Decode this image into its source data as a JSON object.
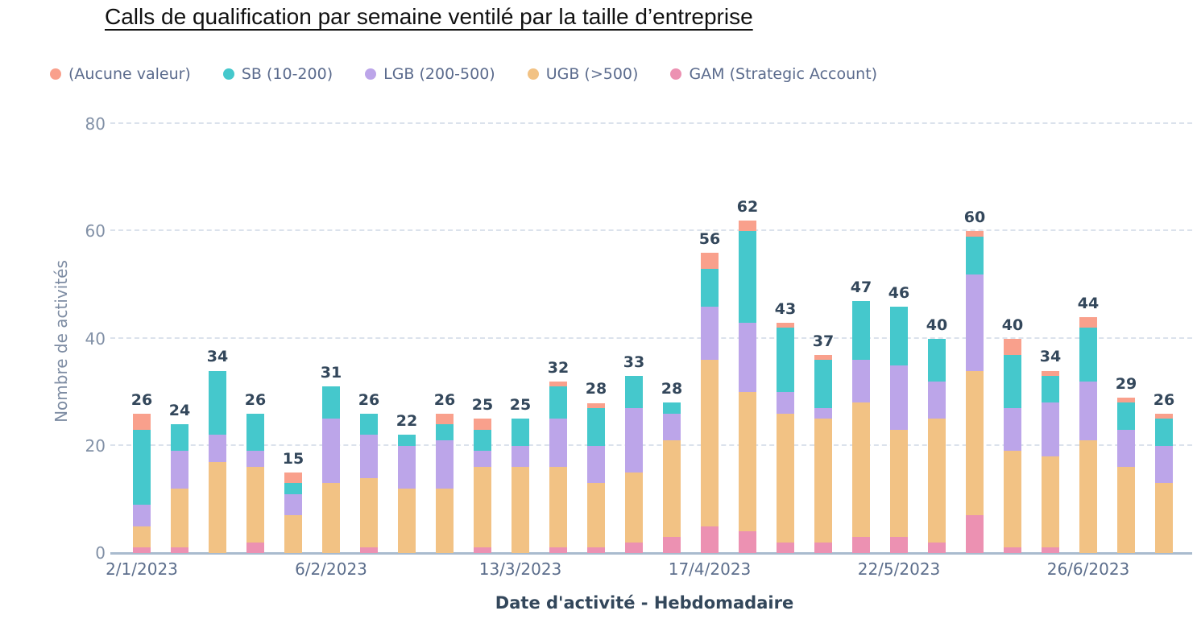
{
  "title": "Calls de qualification par semaine ventilé par la taille d’entreprise",
  "legend": [
    {
      "label": "(Aucune valeur)",
      "color": "#F9A08C"
    },
    {
      "label": "SB (10-200)",
      "color": "#45C8CC"
    },
    {
      "label": "LGB (200-500)",
      "color": "#BCA5E9"
    },
    {
      "label": "UGB (>500)",
      "color": "#F2C284"
    },
    {
      "label": "GAM (Strategic Account)",
      "color": "#EC91B2"
    }
  ],
  "y_axis": {
    "label": "Nombre de activités",
    "ticks": [
      0,
      20,
      40,
      60,
      80
    ],
    "max": 80
  },
  "x_axis": {
    "label": "Date d'activité - Hebdomadaire",
    "ticks": [
      {
        "label": "2/1/2023",
        "bar_index": 0
      },
      {
        "label": "6/2/2023",
        "bar_index": 5
      },
      {
        "label": "13/3/2023",
        "bar_index": 10
      },
      {
        "label": "17/4/2023",
        "bar_index": 15
      },
      {
        "label": "22/5/2023",
        "bar_index": 20
      },
      {
        "label": "26/6/2023",
        "bar_index": 25
      }
    ]
  },
  "chart_data": {
    "type": "bar",
    "stacked": true,
    "bar_count": 28,
    "title": "Calls de qualification par semaine ventilé par la taille d’entreprise",
    "xlabel": "Date d'activité - Hebdomadaire",
    "ylabel": "Nombre de activités",
    "ylim": [
      0,
      80
    ],
    "grid": "horizontal-dashed",
    "legend_position": "top",
    "stack_order_bottom_to_top": [
      "GAM (Strategic Account)",
      "UGB (>500)",
      "LGB (200-500)",
      "SB (10-200)",
      "(Aucune valeur)"
    ],
    "totals": [
      26,
      24,
      34,
      26,
      15,
      31,
      26,
      22,
      26,
      25,
      25,
      32,
      28,
      33,
      28,
      56,
      62,
      43,
      37,
      47,
      46,
      40,
      60,
      40,
      34,
      44,
      29,
      26
    ],
    "series": [
      {
        "name": "(Aucune valeur)",
        "color": "#F9A08C",
        "values": [
          3,
          0,
          0,
          0,
          2,
          0,
          0,
          0,
          2,
          2,
          0,
          1,
          1,
          0,
          0,
          3,
          2,
          1,
          1,
          0,
          0,
          0,
          1,
          3,
          1,
          2,
          1,
          1
        ]
      },
      {
        "name": "SB (10-200)",
        "color": "#45C8CC",
        "values": [
          14,
          5,
          12,
          7,
          2,
          6,
          4,
          2,
          3,
          4,
          5,
          6,
          7,
          6,
          2,
          7,
          17,
          12,
          9,
          11,
          11,
          8,
          7,
          10,
          5,
          10,
          5,
          5
        ]
      },
      {
        "name": "LGB (200-500)",
        "color": "#BCA5E9",
        "values": [
          4,
          7,
          5,
          3,
          4,
          12,
          8,
          8,
          9,
          3,
          4,
          9,
          7,
          12,
          5,
          10,
          13,
          4,
          2,
          8,
          12,
          7,
          18,
          8,
          10,
          11,
          7,
          7
        ]
      },
      {
        "name": "UGB (>500)",
        "color": "#F2C284",
        "values": [
          4,
          11,
          17,
          14,
          7,
          13,
          13,
          12,
          12,
          15,
          16,
          15,
          12,
          13,
          18,
          31,
          26,
          24,
          23,
          25,
          20,
          23,
          27,
          18,
          17,
          21,
          16,
          13
        ]
      },
      {
        "name": "GAM (Strategic Account)",
        "color": "#EC91B2",
        "values": [
          1,
          1,
          0,
          2,
          0,
          0,
          1,
          0,
          0,
          1,
          0,
          1,
          1,
          2,
          3,
          5,
          4,
          2,
          2,
          3,
          3,
          2,
          7,
          1,
          1,
          0,
          0,
          0
        ]
      }
    ]
  }
}
